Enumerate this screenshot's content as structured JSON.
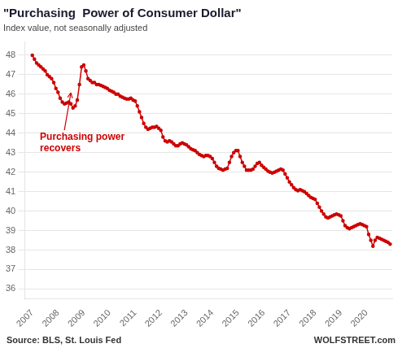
{
  "chart_data": {
    "type": "line",
    "title": "\"Purchasing  Power of Consumer Dollar\"",
    "subtitle": "Index value, not seasonally adjusted",
    "source": "Source: BLS, St. Louis Fed",
    "credit": "WOLFSTREET.com",
    "annotations": [
      {
        "text": "Purchasing power\nrecovers",
        "x": 2008.5,
        "y": 46.2
      }
    ],
    "color": "#cc0000",
    "marker": "circle",
    "grid": "y",
    "xlim": [
      2006.7,
      2021.0
    ],
    "xticks": [
      2007,
      2008,
      2009,
      2010,
      2011,
      2012,
      2013,
      2014,
      2015,
      2016,
      2017,
      2018,
      2019,
      2020
    ],
    "ylim": [
      35.5,
      48.7
    ],
    "yticks": [
      36,
      37,
      38,
      39,
      40,
      41,
      42,
      43,
      44,
      45,
      46,
      47,
      48
    ],
    "x": [
      2007.0,
      2007.083,
      2007.167,
      2007.25,
      2007.333,
      2007.417,
      2007.5,
      2007.583,
      2007.667,
      2007.75,
      2007.833,
      2007.917,
      2008.0,
      2008.083,
      2008.167,
      2008.25,
      2008.333,
      2008.417,
      2008.5,
      2008.583,
      2008.667,
      2008.75,
      2008.833,
      2008.917,
      2009.0,
      2009.083,
      2009.167,
      2009.25,
      2009.333,
      2009.417,
      2009.5,
      2009.583,
      2009.667,
      2009.75,
      2009.833,
      2009.917,
      2010.0,
      2010.083,
      2010.167,
      2010.25,
      2010.333,
      2010.417,
      2010.5,
      2010.583,
      2010.667,
      2010.75,
      2010.833,
      2010.917,
      2011.0,
      2011.083,
      2011.167,
      2011.25,
      2011.333,
      2011.417,
      2011.5,
      2011.583,
      2011.667,
      2011.75,
      2011.833,
      2011.917,
      2012.0,
      2012.083,
      2012.167,
      2012.25,
      2012.333,
      2012.417,
      2012.5,
      2012.583,
      2012.667,
      2012.75,
      2012.833,
      2012.917,
      2013.0,
      2013.083,
      2013.167,
      2013.25,
      2013.333,
      2013.417,
      2013.5,
      2013.583,
      2013.667,
      2013.75,
      2013.833,
      2013.917,
      2014.0,
      2014.083,
      2014.167,
      2014.25,
      2014.333,
      2014.417,
      2014.5,
      2014.583,
      2014.667,
      2014.75,
      2014.833,
      2014.917,
      2015.0,
      2015.083,
      2015.167,
      2015.25,
      2015.333,
      2015.417,
      2015.5,
      2015.583,
      2015.667,
      2015.75,
      2015.833,
      2015.917,
      2016.0,
      2016.083,
      2016.167,
      2016.25,
      2016.333,
      2016.417,
      2016.5,
      2016.583,
      2016.667,
      2016.75,
      2016.833,
      2016.917,
      2017.0,
      2017.083,
      2017.167,
      2017.25,
      2017.333,
      2017.417,
      2017.5,
      2017.583,
      2017.667,
      2017.75,
      2017.833,
      2017.917,
      2018.0,
      2018.083,
      2018.167,
      2018.25,
      2018.333,
      2018.417,
      2018.5,
      2018.583,
      2018.667,
      2018.75,
      2018.833,
      2018.917,
      2019.0,
      2019.083,
      2019.167,
      2019.25,
      2019.333,
      2019.417,
      2019.5,
      2019.583,
      2019.667,
      2019.75,
      2019.833,
      2019.917,
      2020.0,
      2020.083,
      2020.167,
      2020.25,
      2020.333,
      2020.417,
      2020.5,
      2020.583,
      2020.667,
      2020.75,
      2020.833,
      2020.917
    ],
    "values": [
      48.0,
      47.8,
      47.6,
      47.5,
      47.4,
      47.3,
      47.2,
      47.0,
      46.9,
      46.8,
      46.6,
      46.3,
      46.1,
      45.8,
      45.6,
      45.5,
      45.55,
      45.6,
      45.5,
      45.3,
      45.4,
      45.7,
      46.5,
      47.4,
      47.5,
      47.2,
      46.8,
      46.7,
      46.6,
      46.6,
      46.5,
      46.5,
      46.45,
      46.4,
      46.35,
      46.3,
      46.2,
      46.15,
      46.1,
      46.0,
      46.0,
      45.9,
      45.85,
      45.8,
      45.75,
      45.75,
      45.8,
      45.7,
      45.65,
      45.4,
      45.1,
      44.8,
      44.5,
      44.3,
      44.2,
      44.25,
      44.3,
      44.3,
      44.35,
      44.25,
      44.15,
      43.8,
      43.6,
      43.55,
      43.6,
      43.55,
      43.45,
      43.35,
      43.35,
      43.45,
      43.5,
      43.45,
      43.4,
      43.3,
      43.2,
      43.15,
      43.1,
      43.0,
      42.9,
      42.85,
      42.8,
      42.85,
      42.85,
      42.8,
      42.7,
      42.5,
      42.3,
      42.2,
      42.15,
      42.1,
      42.15,
      42.2,
      42.5,
      42.8,
      43.0,
      43.1,
      43.1,
      42.8,
      42.5,
      42.3,
      42.1,
      42.1,
      42.1,
      42.15,
      42.3,
      42.45,
      42.5,
      42.35,
      42.25,
      42.15,
      42.05,
      42.0,
      41.95,
      42.0,
      42.05,
      42.1,
      42.15,
      42.1,
      41.9,
      41.7,
      41.5,
      41.35,
      41.2,
      41.1,
      41.05,
      41.1,
      41.05,
      41.0,
      40.9,
      40.8,
      40.7,
      40.65,
      40.6,
      40.4,
      40.2,
      40.0,
      39.85,
      39.7,
      39.65,
      39.7,
      39.75,
      39.8,
      39.85,
      39.8,
      39.75,
      39.5,
      39.25,
      39.15,
      39.1,
      39.15,
      39.2,
      39.25,
      39.3,
      39.35,
      39.3,
      39.25,
      39.2,
      38.8,
      38.5,
      38.2,
      38.5,
      38.65,
      38.6,
      38.55,
      38.5,
      38.45,
      38.4,
      38.3
    ]
  }
}
